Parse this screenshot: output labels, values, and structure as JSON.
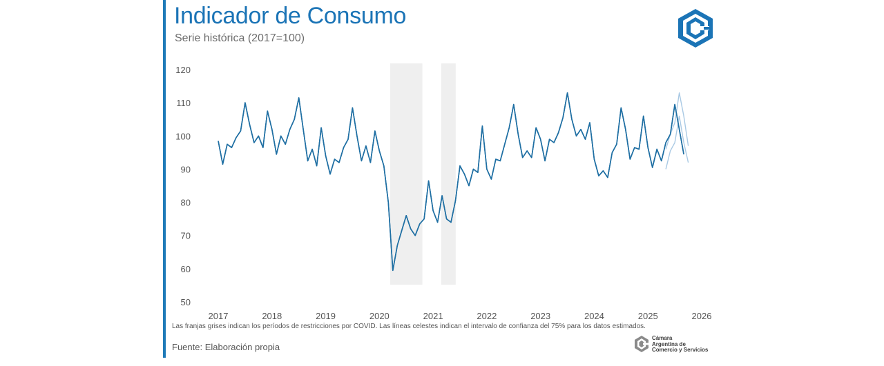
{
  "header": {
    "title": "Indicador de Consumo",
    "subtitle": "Serie histórica (2017=100)"
  },
  "footer": {
    "note": "Las franjas grises indican los períodos de restricciones por COVID. Las líneas celestes indican el intervalo de confianza del 75% para los datos estimados.",
    "source": "Fuente: Elaboración propia",
    "org_lines": [
      "Cámara",
      "Argentina de",
      "Comercio y Servicios"
    ]
  },
  "colors": {
    "accent": "#1b74b6",
    "series": "#1f6fa3",
    "ci": "#a9c9e4",
    "band": "#efefef"
  },
  "chart_data": {
    "type": "line",
    "title": "Indicador de Consumo",
    "subtitle": "Serie histórica (2017=100)",
    "xlabel": "",
    "ylabel": "",
    "xlim": [
      2017,
      2026
    ],
    "ylim": [
      50,
      120
    ],
    "yticks": [
      50,
      60,
      70,
      80,
      90,
      100,
      110,
      120
    ],
    "ytick_labels": [
      "50",
      "60",
      "70",
      "80",
      "90",
      "100",
      "110",
      "120"
    ],
    "xticks": [
      2017,
      2018,
      2019,
      2020,
      2021,
      2022,
      2023,
      2024,
      2025,
      2026
    ],
    "xtick_labels": [
      "2017",
      "2018",
      "2019",
      "2020",
      "2021",
      "2022",
      "2023",
      "2024",
      "2025",
      "2026"
    ],
    "grid": false,
    "covid_bands": [
      [
        2020.2,
        2020.8
      ],
      [
        2021.15,
        2021.42
      ]
    ],
    "series": [
      {
        "name": "Indicador de Consumo",
        "x_start": 2017.0,
        "step": 0.0833333,
        "values": [
          98.5,
          91.5,
          97.5,
          96.5,
          99.5,
          101.5,
          110,
          103.5,
          98,
          100,
          96.5,
          107.5,
          102,
          94.5,
          100,
          97.5,
          102,
          105,
          111.5,
          102,
          92.5,
          96,
          91,
          102.5,
          94,
          88.5,
          93,
          92,
          96.5,
          99,
          108.5,
          100,
          92.5,
          97,
          92,
          101.5,
          95.5,
          91,
          80,
          59.5,
          67,
          71.5,
          76,
          72,
          70,
          73.5,
          75,
          86.5,
          77.5,
          74,
          82,
          75,
          74,
          80.5,
          91,
          88.5,
          85,
          90,
          89,
          103,
          90,
          87,
          93,
          92.5,
          97.5,
          102.5,
          109.5,
          100.5,
          93.5,
          95.5,
          93.5,
          102.5,
          99,
          92.5,
          99,
          98,
          101,
          105.5,
          113,
          105,
          100,
          102,
          99,
          104,
          93,
          88,
          89.5,
          87.5,
          95,
          97.5,
          108.5,
          102,
          93,
          96.5,
          96,
          106,
          96.5,
          90.5,
          96,
          92.5,
          98,
          100.5,
          109.5,
          102,
          94.5
        ]
      },
      {
        "name": "IC 75% superior",
        "x_start": 2025.33333,
        "step": 0.0833333,
        "values": [
          96,
          100.5,
          104,
          113,
          106,
          97
        ]
      },
      {
        "name": "IC 75% inferior",
        "x_start": 2025.33333,
        "step": 0.0833333,
        "values": [
          90,
          95.5,
          98,
          106,
          98,
          92
        ]
      }
    ]
  }
}
